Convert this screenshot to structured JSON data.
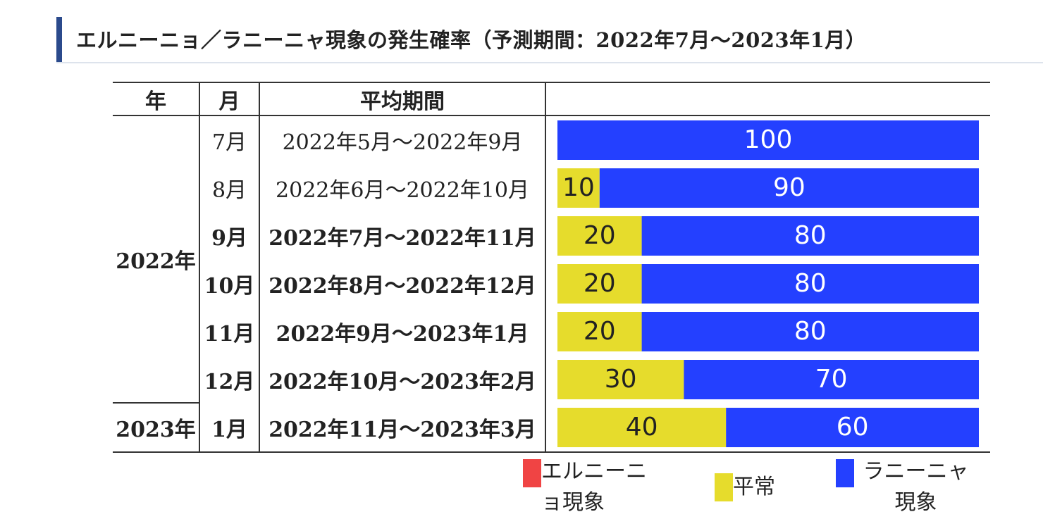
{
  "heading": {
    "title": "エルニーニョ／ラニーニャ現象の発生確率（予測期間：2022年7月〜2023年1月）",
    "accent_color": "#2b4a8c"
  },
  "table": {
    "headers": {
      "year": "年",
      "month": "月",
      "period": "平均期間",
      "chart": ""
    },
    "year_groups": [
      {
        "label": "2022年",
        "row_start": 0,
        "row_end": 5
      },
      {
        "label": "2023年",
        "row_start": 6,
        "row_end": 6
      }
    ]
  },
  "chart_data": {
    "type": "bar",
    "orientation": "horizontal",
    "stacked": true,
    "categories": [
      "7月",
      "8月",
      "9月",
      "10月",
      "11月",
      "12月",
      "1月"
    ],
    "periods": [
      "2022年5月〜2022年9月",
      "2022年6月〜2022年10月",
      "2022年7月〜2022年11月",
      "2022年8月〜2022年12月",
      "2022年9月〜2023年1月",
      "2022年10月〜2023年2月",
      "2022年11月〜2023年3月"
    ],
    "period_bold": [
      false,
      false,
      true,
      true,
      true,
      true,
      true
    ],
    "month_bold": [
      false,
      false,
      true,
      true,
      true,
      true,
      true
    ],
    "series": [
      {
        "name": "エルニーニョ現象",
        "color": "#f04444",
        "values": [
          0,
          0,
          0,
          0,
          0,
          0,
          0
        ]
      },
      {
        "name": "平常",
        "color": "#e6dc2c",
        "values": [
          0,
          10,
          20,
          20,
          20,
          30,
          40
        ]
      },
      {
        "name": "ラニーニャ現象",
        "color": "#2440ff",
        "values": [
          100,
          90,
          80,
          80,
          80,
          70,
          60
        ]
      }
    ],
    "xlim": [
      0,
      100
    ],
    "label_colors": {
      "平常": "#222222",
      "ラニーニャ現象": "#ffffff"
    },
    "legend_position": "bottom"
  },
  "legend": [
    {
      "label": "エルニーニ\nョ現象",
      "color": "#f04444"
    },
    {
      "label": "平常",
      "color": "#e6dc2c"
    },
    {
      "label": "ラニーニャ\n現象",
      "color": "#2440ff"
    }
  ]
}
